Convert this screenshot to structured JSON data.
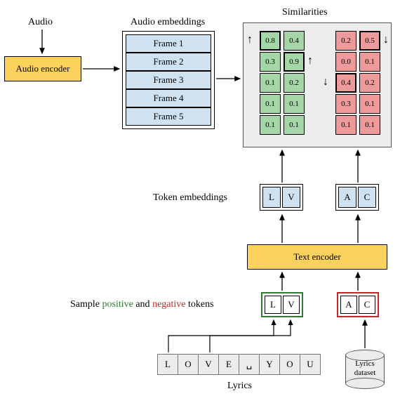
{
  "labels": {
    "audio": "Audio",
    "audio_encoder": "Audio encoder",
    "audio_embeddings": "Audio embeddings",
    "similarities": "Similarities",
    "token_embeddings": "Token embeddings",
    "text_encoder": "Text encoder",
    "sample_tokens_pre": "Sample ",
    "sample_tokens_pos": "positive",
    "sample_tokens_mid": " and ",
    "sample_tokens_neg": "negative",
    "sample_tokens_post": " tokens",
    "lyrics": "Lyrics",
    "lyrics_dataset_line1": "Lyrics",
    "lyrics_dataset_line2": "dataset"
  },
  "colors": {
    "yellow": "#fcd15c",
    "blue": "#cee2f2",
    "green": "#a5d6a7",
    "red": "#ef9a9a",
    "grey": "#ececec",
    "pos_text": "#2e7d32",
    "neg_text": "#c62828"
  },
  "frames": [
    "Frame 1",
    "Frame 2",
    "Frame 3",
    "Frame 4",
    "Frame 5"
  ],
  "similarities": {
    "green": {
      "col0": [
        {
          "v": "0.8",
          "bold": true
        },
        {
          "v": "0.3",
          "bold": false
        },
        {
          "v": "0.1",
          "bold": false
        },
        {
          "v": "0.1",
          "bold": false
        },
        {
          "v": "0.1",
          "bold": false
        }
      ],
      "col1": [
        {
          "v": "0.4",
          "bold": false
        },
        {
          "v": "0.9",
          "bold": true
        },
        {
          "v": "0.2",
          "bold": false
        },
        {
          "v": "0.1",
          "bold": false
        },
        {
          "v": "0.1",
          "bold": false
        }
      ]
    },
    "red": {
      "col0": [
        {
          "v": "0.2",
          "bold": false
        },
        {
          "v": "0.0",
          "bold": false
        },
        {
          "v": "0.4",
          "bold": true
        },
        {
          "v": "0.3",
          "bold": false
        },
        {
          "v": "0.1",
          "bold": false
        }
      ],
      "col1": [
        {
          "v": "0.5",
          "bold": true
        },
        {
          "v": "0.1",
          "bold": false
        },
        {
          "v": "0.2",
          "bold": false
        },
        {
          "v": "0.1",
          "bold": false
        },
        {
          "v": "0.1",
          "bold": false
        }
      ]
    },
    "arrows_green": [
      "↑",
      "↑",
      "",
      "",
      ""
    ],
    "arrows_red": [
      "↓",
      "",
      "↓",
      "",
      ""
    ]
  },
  "token_embeddings": {
    "left": [
      "L",
      "V"
    ],
    "right": [
      "A",
      "C"
    ]
  },
  "sample_pairs": {
    "positive": [
      "L",
      "V"
    ],
    "negative": [
      "A",
      "C"
    ]
  },
  "lyrics_chars": [
    "L",
    "O",
    "V",
    "E",
    "␣",
    "Y",
    "O",
    "U"
  ]
}
